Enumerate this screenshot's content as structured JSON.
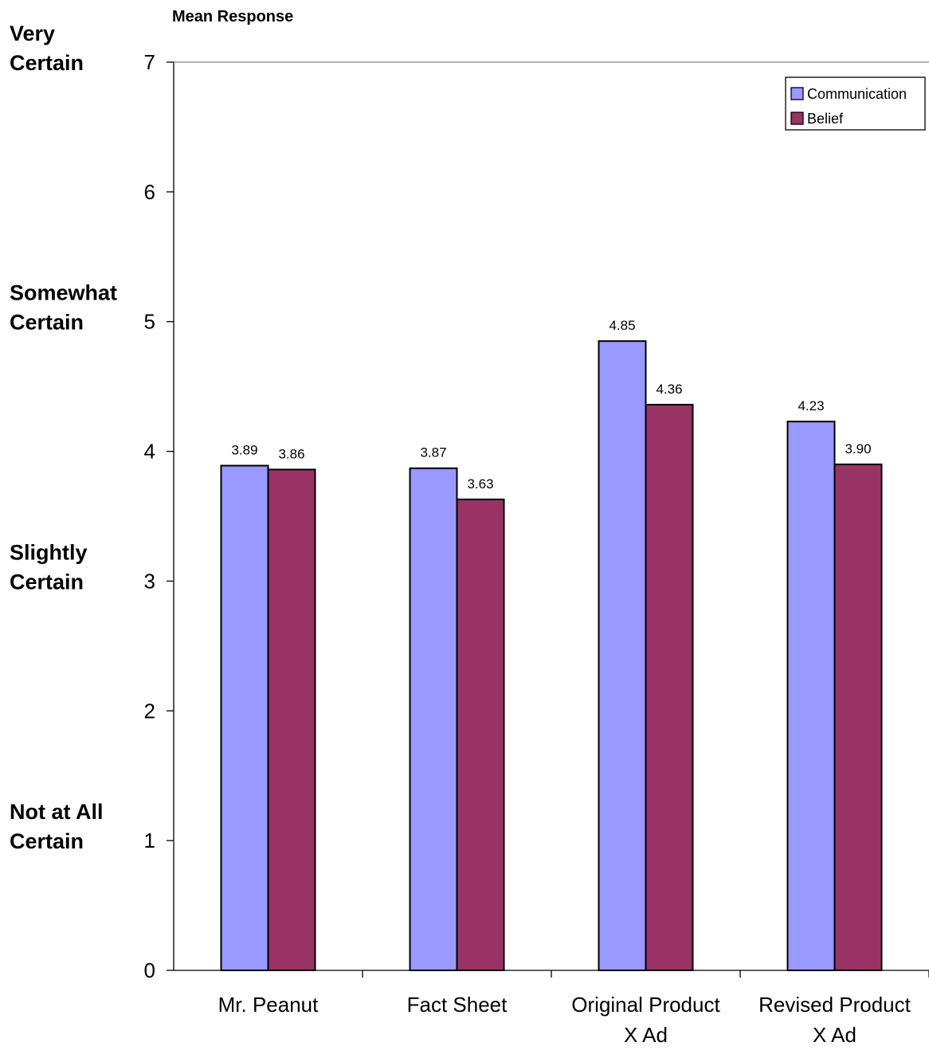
{
  "chart_data": {
    "type": "bar",
    "ylabel": "Mean Response",
    "xlabel": "",
    "ylim": [
      0,
      7
    ],
    "yticks": [
      "0",
      "1",
      "2",
      "3",
      "4",
      "5",
      "6",
      "7"
    ],
    "categories": [
      [
        "Mr. Peanut"
      ],
      [
        "Fact Sheet"
      ],
      [
        "Original Product",
        "X Ad"
      ],
      [
        "Revised Product",
        "X Ad"
      ]
    ],
    "series": [
      {
        "name": "Communication",
        "color": "#9999ff",
        "values": [
          3.89,
          3.87,
          4.85,
          4.23
        ],
        "labels": [
          "3.89",
          "3.87",
          "4.85",
          "4.23"
        ]
      },
      {
        "name": "Belief",
        "color": "#993366",
        "values": [
          3.86,
          3.63,
          4.36,
          3.9
        ],
        "labels": [
          "3.86",
          "3.63",
          "4.36",
          "3.90"
        ]
      }
    ],
    "scale_labels": [
      {
        "value": 7,
        "lines": [
          "Very",
          "Certain"
        ]
      },
      {
        "value": 5,
        "lines": [
          "Somewhat",
          "Certain"
        ]
      },
      {
        "value": 3,
        "lines": [
          "Slightly",
          "Certain"
        ]
      },
      {
        "value": 1,
        "lines": [
          "Not at All",
          "Certain"
        ]
      }
    ],
    "legend_position": "top-right",
    "grid": false
  }
}
